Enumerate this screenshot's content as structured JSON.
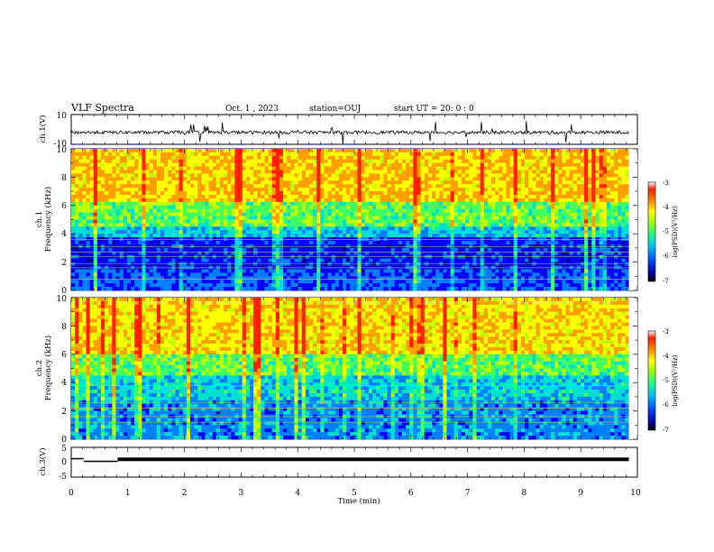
{
  "header": {
    "title": "VLF Spectra",
    "date": "Oct. 1 , 2023",
    "station": "station=OUJ",
    "start_ut": "start  UT =   20: 0  : 0"
  },
  "colorbar": {
    "label": "log(PSD)(V²/Hz)",
    "ticks": [
      "-3",
      "-4",
      "-5",
      "-6",
      "-7"
    ],
    "colors": [
      "#000080",
      "#0000ff",
      "#0080ff",
      "#00e0e0",
      "#40ff80",
      "#a0ff20",
      "#ffff00",
      "#ffa000",
      "#ff2000",
      "#ffffff"
    ]
  },
  "chart_data": [
    {
      "type": "line",
      "panel": "ch1-waveform",
      "ylabel": "ch.1(V)",
      "ylim": [
        -10,
        10
      ],
      "yticks": [
        "10",
        "-10"
      ],
      "xlim": [
        0,
        10
      ],
      "description_series": "continuous noisy waveform near -2 V with spikes"
    },
    {
      "type": "heatmap",
      "panel": "ch1-spectrogram",
      "ylabel_top": "ch.1",
      "ylabel": "Frequency (kHz)",
      "ylim": [
        0,
        10
      ],
      "yticks": [
        "0",
        "2",
        "4",
        "6",
        "8",
        "10"
      ],
      "xlim": [
        0,
        10
      ],
      "value_range": [
        -7,
        -3
      ]
    },
    {
      "type": "heatmap",
      "panel": "ch2-spectrogram",
      "ylabel_top": "ch.2",
      "ylabel": "Frequency (kHz)",
      "ylim": [
        0,
        10
      ],
      "yticks": [
        "0",
        "2",
        "4",
        "6",
        "8",
        "10"
      ],
      "xlim": [
        0,
        10
      ],
      "value_range": [
        -7,
        -3
      ]
    },
    {
      "type": "line",
      "panel": "ch3-waveform",
      "ylabel": "ch.3(V)",
      "ylim": [
        -5,
        5
      ],
      "yticks": [
        "5",
        "0",
        "-5"
      ],
      "xlim": [
        0,
        10
      ],
      "xlabel": "Time (min)",
      "xticks": [
        "0",
        "1",
        "2",
        "3",
        "4",
        "5",
        "6",
        "7",
        "8",
        "9",
        "10"
      ],
      "segments": [
        {
          "x": [
            0.0,
            0.22
          ],
          "y": [
            1.2,
            1.2
          ]
        },
        {
          "x": [
            0.22,
            0.82
          ],
          "y": [
            0.3,
            0.3
          ]
        },
        {
          "x": [
            0.82,
            9.85
          ],
          "y": [
            1.0,
            1.0
          ]
        }
      ]
    }
  ]
}
